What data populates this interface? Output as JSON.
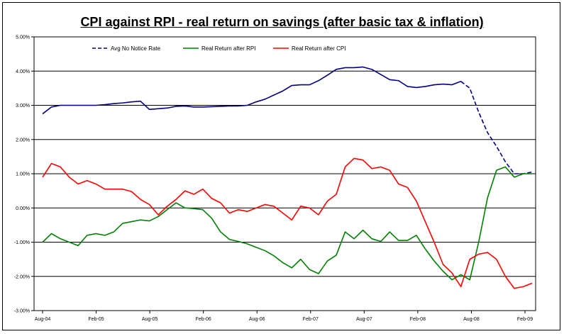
{
  "chart_data": {
    "type": "line",
    "title": "CPI against RPI - real return on savings (after basic tax & inflation)",
    "xlabel": "",
    "ylabel": "",
    "ylim": [
      -3.0,
      5.0
    ],
    "grid": true,
    "legend_position": "top-left",
    "x_tick_labels": [
      "Aug-04",
      "Feb-05",
      "Aug-05",
      "Feb-06",
      "Aug-06",
      "Feb-07",
      "Aug-07",
      "Feb-08",
      "Aug-08",
      "Feb-09"
    ],
    "y_tick_labels": [
      "5.00%",
      "4.00%",
      "3.00%",
      "2.00%",
      "1.00%",
      "0.00%",
      "-1.00%",
      "-2.00%",
      "-3.00%"
    ],
    "y_tick_values": [
      5,
      4,
      3,
      2,
      1,
      0,
      -1,
      -2,
      -3
    ],
    "x_range": [
      0,
      55
    ],
    "series": [
      {
        "name": "Avg No Notice Rate",
        "legend_label": "Avg No Notice Rate",
        "color": "#000080",
        "dash": "solid-then-dashed",
        "points": [
          [
            0,
            2.75
          ],
          [
            1,
            2.95
          ],
          [
            2,
            3.0
          ],
          [
            3,
            3.0
          ],
          [
            4,
            3.0
          ],
          [
            5,
            3.0
          ],
          [
            6,
            3.0
          ],
          [
            7,
            3.02
          ],
          [
            8,
            3.05
          ],
          [
            9,
            3.07
          ],
          [
            10,
            3.1
          ],
          [
            11,
            3.12
          ],
          [
            12,
            2.88
          ],
          [
            13,
            2.9
          ],
          [
            14,
            2.92
          ],
          [
            15,
            2.97
          ],
          [
            16,
            2.98
          ],
          [
            17,
            2.95
          ],
          [
            18,
            2.95
          ],
          [
            19,
            2.96
          ],
          [
            20,
            2.97
          ],
          [
            21,
            2.98
          ],
          [
            22,
            2.98
          ],
          [
            23,
            3.0
          ],
          [
            24,
            3.1
          ],
          [
            25,
            3.18
          ],
          [
            26,
            3.3
          ],
          [
            27,
            3.42
          ],
          [
            28,
            3.58
          ],
          [
            29,
            3.6
          ],
          [
            30,
            3.6
          ],
          [
            31,
            3.72
          ],
          [
            32,
            3.88
          ],
          [
            33,
            4.05
          ],
          [
            34,
            4.1
          ],
          [
            35,
            4.1
          ],
          [
            36,
            4.12
          ],
          [
            37,
            4.05
          ],
          [
            38,
            3.9
          ],
          [
            39,
            3.75
          ],
          [
            40,
            3.72
          ],
          [
            41,
            3.55
          ],
          [
            42,
            3.52
          ],
          [
            43,
            3.55
          ],
          [
            44,
            3.6
          ],
          [
            45,
            3.62
          ],
          [
            46,
            3.6
          ],
          [
            47,
            3.7
          ],
          [
            48,
            3.5
          ],
          [
            49,
            2.8
          ],
          [
            50,
            2.2
          ],
          [
            51,
            1.8
          ],
          [
            52,
            1.35
          ],
          [
            53,
            1.0
          ],
          [
            54,
            1.0
          ],
          [
            55,
            1.05
          ]
        ]
      },
      {
        "name": "Real Return after RPI",
        "legend_label": "Real Return after RPI",
        "color": "#008000",
        "dash": "solid",
        "points": [
          [
            0,
            -1.0
          ],
          [
            1,
            -0.75
          ],
          [
            2,
            -0.9
          ],
          [
            3,
            -1.0
          ],
          [
            4,
            -1.1
          ],
          [
            5,
            -0.8
          ],
          [
            6,
            -0.75
          ],
          [
            7,
            -0.8
          ],
          [
            8,
            -0.7
          ],
          [
            9,
            -0.45
          ],
          [
            10,
            -0.4
          ],
          [
            11,
            -0.35
          ],
          [
            12,
            -0.38
          ],
          [
            13,
            -0.25
          ],
          [
            14,
            -0.05
          ],
          [
            15,
            0.15
          ],
          [
            16,
            0.0
          ],
          [
            17,
            -0.02
          ],
          [
            18,
            -0.05
          ],
          [
            19,
            -0.3
          ],
          [
            20,
            -0.7
          ],
          [
            21,
            -0.92
          ],
          [
            22,
            -0.98
          ],
          [
            23,
            -1.05
          ],
          [
            24,
            -1.15
          ],
          [
            25,
            -1.25
          ],
          [
            26,
            -1.4
          ],
          [
            27,
            -1.6
          ],
          [
            28,
            -1.75
          ],
          [
            29,
            -1.5
          ],
          [
            30,
            -1.8
          ],
          [
            31,
            -1.92
          ],
          [
            32,
            -1.55
          ],
          [
            33,
            -1.38
          ],
          [
            34,
            -0.7
          ],
          [
            35,
            -0.9
          ],
          [
            36,
            -0.65
          ],
          [
            37,
            -0.9
          ],
          [
            38,
            -0.98
          ],
          [
            39,
            -0.7
          ],
          [
            40,
            -0.95
          ],
          [
            41,
            -0.95
          ],
          [
            42,
            -0.8
          ],
          [
            43,
            -1.2
          ],
          [
            44,
            -1.55
          ],
          [
            45,
            -1.85
          ],
          [
            46,
            -2.1
          ],
          [
            47,
            -1.95
          ],
          [
            48,
            -2.1
          ],
          [
            49,
            -1.0
          ],
          [
            50,
            0.3
          ],
          [
            51,
            1.1
          ],
          [
            52,
            1.2
          ],
          [
            53,
            0.9
          ],
          [
            54,
            1.0
          ],
          [
            55,
            1.0
          ]
        ]
      },
      {
        "name": "Real Return after CPI",
        "legend_label": "Real Return after CPI",
        "color": "#ff0000",
        "dash": "solid",
        "points": [
          [
            0,
            0.9
          ],
          [
            1,
            1.3
          ],
          [
            2,
            1.2
          ],
          [
            3,
            0.9
          ],
          [
            4,
            0.7
          ],
          [
            5,
            0.8
          ],
          [
            6,
            0.7
          ],
          [
            7,
            0.55
          ],
          [
            8,
            0.55
          ],
          [
            9,
            0.55
          ],
          [
            10,
            0.48
          ],
          [
            11,
            0.25
          ],
          [
            12,
            0.1
          ],
          [
            13,
            -0.2
          ],
          [
            14,
            0.05
          ],
          [
            15,
            0.25
          ],
          [
            16,
            0.5
          ],
          [
            17,
            0.4
          ],
          [
            18,
            0.55
          ],
          [
            19,
            0.28
          ],
          [
            20,
            0.15
          ],
          [
            21,
            -0.15
          ],
          [
            22,
            -0.05
          ],
          [
            23,
            -0.1
          ],
          [
            24,
            0.0
          ],
          [
            25,
            0.1
          ],
          [
            26,
            0.05
          ],
          [
            27,
            -0.15
          ],
          [
            28,
            -0.35
          ],
          [
            29,
            0.05
          ],
          [
            30,
            0.0
          ],
          [
            31,
            -0.2
          ],
          [
            32,
            0.2
          ],
          [
            33,
            0.4
          ],
          [
            34,
            1.2
          ],
          [
            35,
            1.45
          ],
          [
            36,
            1.4
          ],
          [
            37,
            1.15
          ],
          [
            38,
            1.2
          ],
          [
            39,
            1.1
          ],
          [
            40,
            0.7
          ],
          [
            41,
            0.6
          ],
          [
            42,
            0.2
          ],
          [
            43,
            -0.4
          ],
          [
            44,
            -1.0
          ],
          [
            45,
            -1.65
          ],
          [
            46,
            -1.9
          ],
          [
            47,
            -2.3
          ],
          [
            48,
            -1.5
          ],
          [
            49,
            -1.35
          ],
          [
            50,
            -1.3
          ],
          [
            51,
            -1.5
          ],
          [
            52,
            -2.0
          ],
          [
            53,
            -2.35
          ],
          [
            54,
            -2.3
          ],
          [
            55,
            -2.2
          ]
        ]
      }
    ]
  }
}
